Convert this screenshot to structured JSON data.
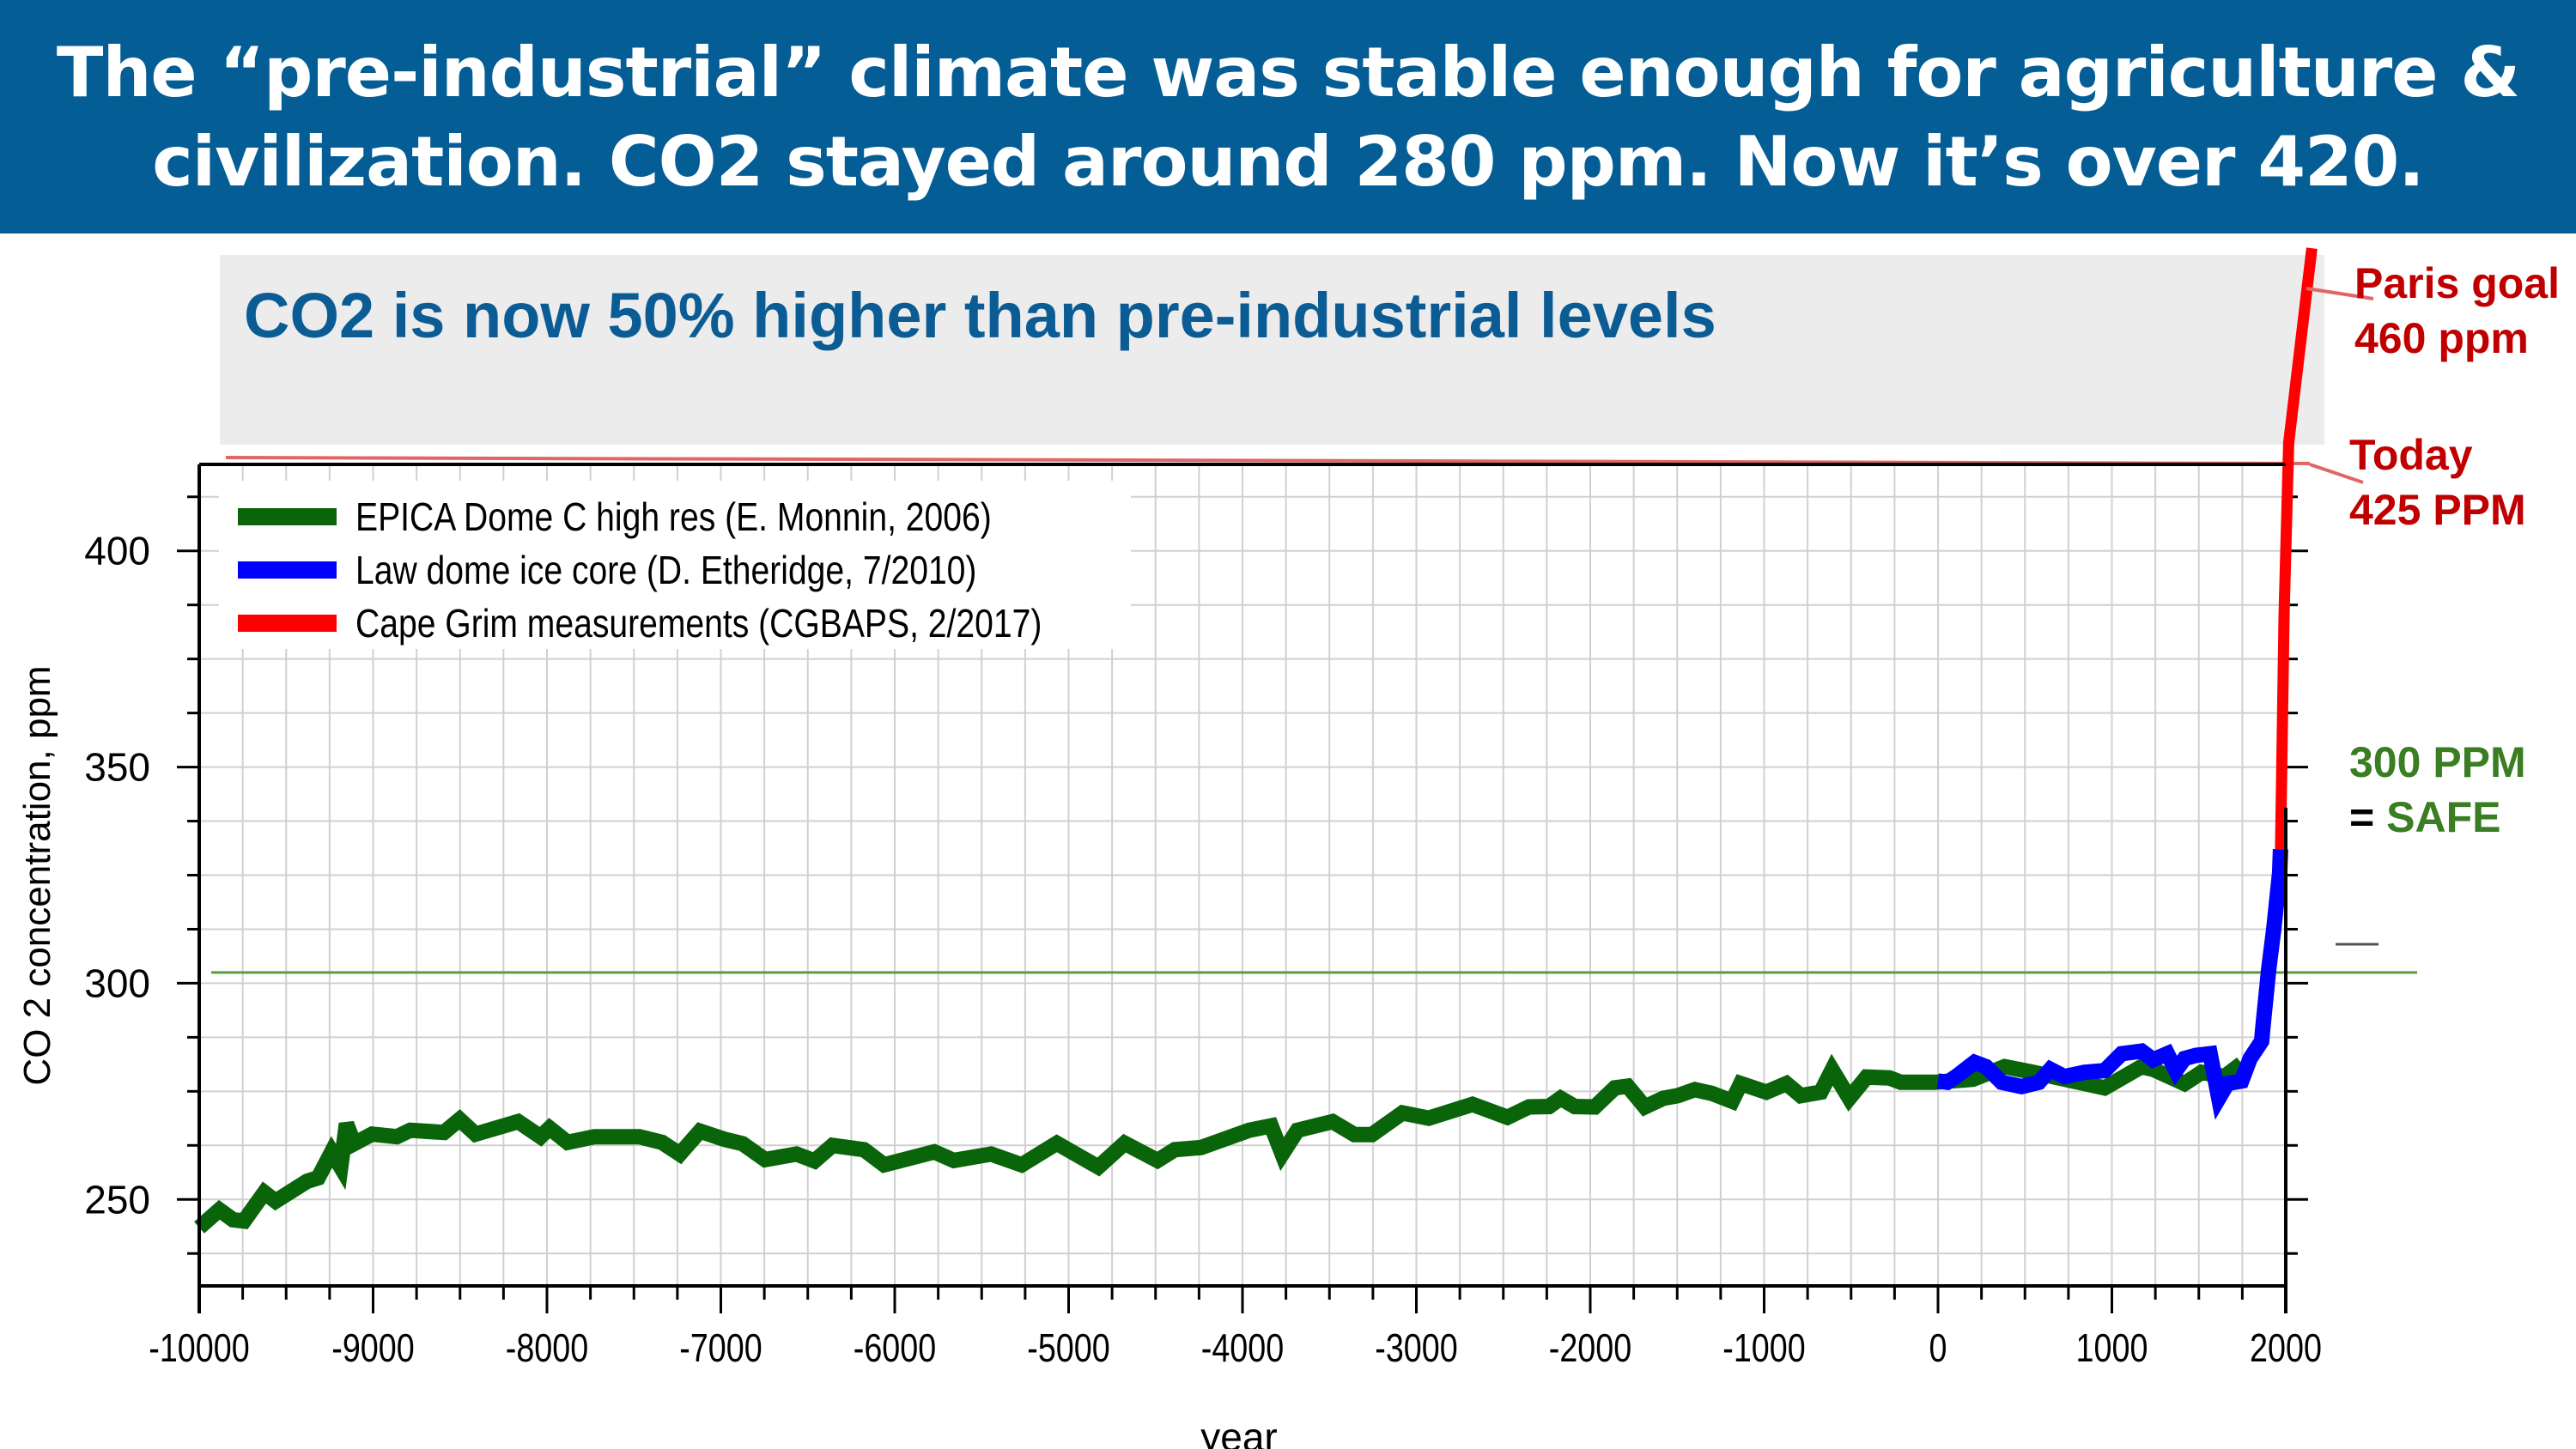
{
  "header": {
    "title_line1": "The “pre-industrial” climate was stable enough for agriculture &",
    "title_line2": "civilization.  CO2 stayed around 280 ppm.  Now it’s over 420."
  },
  "subtitle": "CO2 is now 50% higher than pre-industrial levels",
  "annotations": {
    "paris_goal": {
      "line1": "Paris goal",
      "line2": "460 ppm",
      "value_ppm": 460,
      "color": "#c00000"
    },
    "today": {
      "line1": "Today",
      "line2": "425 PPM",
      "value_ppm": 425,
      "color": "#c00000"
    },
    "safe": {
      "line1": "300 PPM",
      "eq": "=",
      "line2": "SAFE",
      "value_ppm": 300,
      "color": "#3a7d22"
    }
  },
  "chart_data": {
    "type": "line",
    "title": "",
    "xlabel": "year",
    "ylabel": "CO 2 concentration, ppm",
    "xlim": [
      -10000,
      2000
    ],
    "ylim": [
      230,
      420
    ],
    "x_ticks": [
      -10000,
      -9000,
      -8000,
      -7000,
      -6000,
      -5000,
      -4000,
      -3000,
      -2000,
      -1000,
      0,
      1000,
      2000
    ],
    "x_tick_labels": [
      "-10000",
      "-9000",
      "-8000",
      "-7000",
      "-6000",
      "-5000",
      "-4000",
      "-3000",
      "-2000",
      "-1000",
      "0",
      "1000",
      "2000"
    ],
    "x_minor_step": 250,
    "y_ticks": [
      250,
      300,
      350,
      400
    ],
    "y_tick_labels": [
      "250",
      "300",
      "350",
      "400"
    ],
    "y_minor_step": 12.5,
    "grid": true,
    "legend_position": "top-left",
    "reference_lines": [
      {
        "name": "safe-level-line",
        "y": 302.5,
        "color": "#5a9e3a",
        "label": "300 PPM = SAFE"
      },
      {
        "name": "today-level-line",
        "y": 425,
        "color": "#e06666",
        "label": "Today 425 PPM"
      }
    ],
    "series": [
      {
        "name": "EPICA Dome C high res (E. Monnin, 2006)",
        "color": "#0a640a",
        "x": [
          -10000,
          -9884,
          -9806,
          -9742,
          -9625,
          -9561,
          -9380,
          -9316,
          -9238,
          -9186,
          -9153,
          -9109,
          -9006,
          -8863,
          -8786,
          -8592,
          -8502,
          -8411,
          -8166,
          -8037,
          -7985,
          -7882,
          -7727,
          -7469,
          -7339,
          -7236,
          -7120,
          -6978,
          -6875,
          -6745,
          -6565,
          -6461,
          -6358,
          -6177,
          -6061,
          -5773,
          -5660,
          -5446,
          -5270,
          -5068,
          -4829,
          -4678,
          -4489,
          -4389,
          -4238,
          -3961,
          -3835,
          -3772,
          -3684,
          -3482,
          -3356,
          -3256,
          -3080,
          -2929,
          -2677,
          -2476,
          -2352,
          -2237,
          -2171,
          -2089,
          -1974,
          -1859,
          -1785,
          -1686,
          -1579,
          -1497,
          -1398,
          -1299,
          -1184,
          -1135,
          -987,
          -872,
          -789,
          -674,
          -609,
          -510,
          -411,
          -280,
          -214,
          -17,
          202,
          383,
          547,
          777,
          958,
          1171,
          1237,
          1418,
          1516,
          1648,
          1746
        ],
        "values": [
          243.5,
          247.6,
          245.3,
          245.0,
          251.6,
          249.6,
          254.2,
          255.0,
          261.0,
          257.5,
          267.5,
          262.9,
          265.1,
          264.5,
          266.0,
          265.5,
          268.5,
          265.1,
          268.0,
          264.5,
          266.5,
          263.2,
          264.5,
          264.5,
          263.2,
          260.5,
          265.8,
          263.9,
          262.9,
          259.2,
          260.5,
          258.9,
          262.5,
          261.5,
          258.0,
          261.0,
          259.0,
          260.5,
          258.0,
          263.0,
          257.5,
          263.0,
          259.0,
          261.5,
          262.0,
          266.0,
          267.0,
          260.5,
          266.0,
          268.0,
          265.0,
          265.0,
          270.0,
          268.8,
          272.0,
          269.0,
          271.4,
          271.5,
          273.4,
          271.5,
          271.4,
          275.8,
          276.2,
          271.4,
          273.4,
          274.0,
          275.4,
          274.5,
          272.7,
          276.8,
          274.8,
          276.8,
          274.0,
          274.8,
          280.0,
          273.4,
          278.3,
          278.1,
          277.1,
          277.1,
          277.8,
          280.7,
          279.4,
          277.4,
          275.8,
          280.7,
          280.1,
          276.8,
          279.4,
          278.4,
          281.4
        ]
      },
      {
        "name": "Law dome ice core (D. Etheridge, 7/2010)",
        "color": "#0000ff",
        "x": [
          0,
          54,
          103,
          210,
          276,
          366,
          481,
          580,
          646,
          728,
          843,
          958,
          1056,
          1171,
          1237,
          1319,
          1368,
          1418,
          1483,
          1565,
          1615,
          1664,
          1746,
          1795,
          1861,
          1867,
          1901,
          1931,
          1965,
          1970
        ],
        "values": [
          277.4,
          277.1,
          278.4,
          281.7,
          280.7,
          277.1,
          276.1,
          277.1,
          280.1,
          278.4,
          279.4,
          279.8,
          283.7,
          284.3,
          282.3,
          283.7,
          279.8,
          282.6,
          283.3,
          283.7,
          273.4,
          276.8,
          277.4,
          282.6,
          286.6,
          289.3,
          303.0,
          312.5,
          325.6,
          331.0
        ]
      },
      {
        "name": "Cape Grim measurements (CGBAPS, 2/2017)",
        "color": "#ff0000",
        "x": [
          1970,
          1990,
          2017,
          2150
        ],
        "values": [
          331.0,
          385.0,
          425.0,
          470.0
        ]
      }
    ]
  }
}
